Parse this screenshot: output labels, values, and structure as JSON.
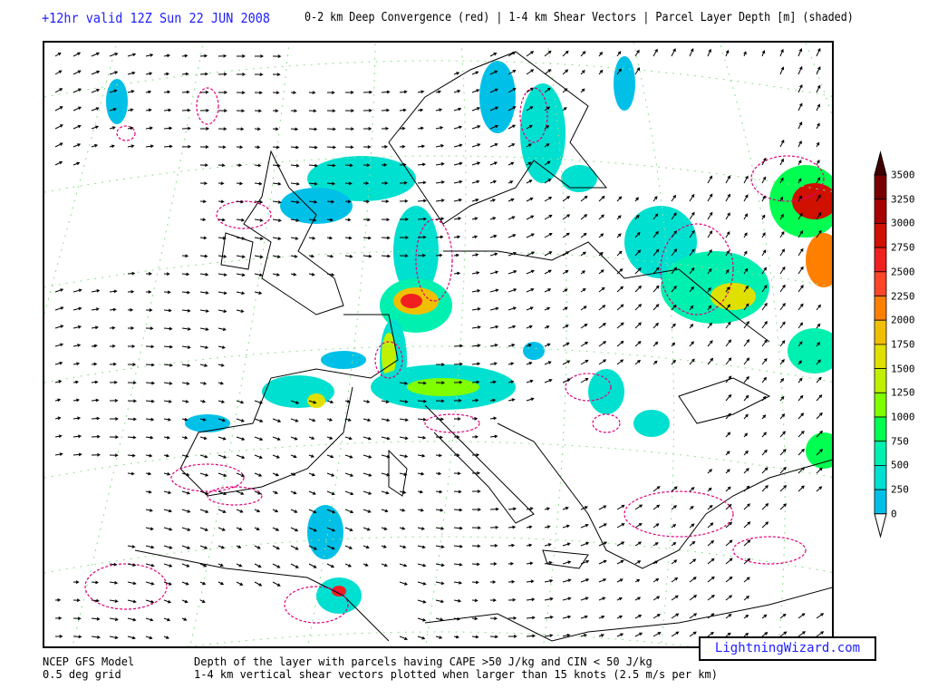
{
  "header": {
    "valid_time": "+12hr valid 12Z Sun 22 JUN 2008",
    "description": "0-2 km Deep Convergence (red) | 1-4 km Shear Vectors | Parcel Layer Depth [m] (shaded)"
  },
  "map": {
    "region": "Europe",
    "layers": [
      "0-2 km Deep Convergence (red contours, dashed)",
      "1-4 km Shear Vectors (arrows)",
      "Parcel Layer Depth (shaded)"
    ],
    "convergence_color": "#e0007a",
    "coastline_color": "#000000",
    "grid_color": "#90e090"
  },
  "colorbar": {
    "unit": "m",
    "labels": [
      "3500",
      "3250",
      "3000",
      "2750",
      "2500",
      "2250",
      "2000",
      "1750",
      "1500",
      "1250",
      "1000",
      "750",
      "500",
      "250",
      "0"
    ],
    "colors": [
      "#7a0000",
      "#a80000",
      "#d01000",
      "#f02020",
      "#ff4628",
      "#ff8000",
      "#f0c000",
      "#e0e000",
      "#c0f000",
      "#80ff00",
      "#00ff50",
      "#00f0b0",
      "#00e0d0",
      "#00c0e8"
    ],
    "max_arrow_color": "#400000"
  },
  "footer": {
    "model": "NCEP GFS Model",
    "grid": "0.5 deg grid",
    "line1": "Depth of the layer with parcels having CAPE >50 J/kg and CIN < 50 J/kg",
    "line2": "1-4 km vertical shear vectors plotted when larger than 15 knots (2.5 m/s per km)",
    "logo": "LightningWizard.com"
  }
}
